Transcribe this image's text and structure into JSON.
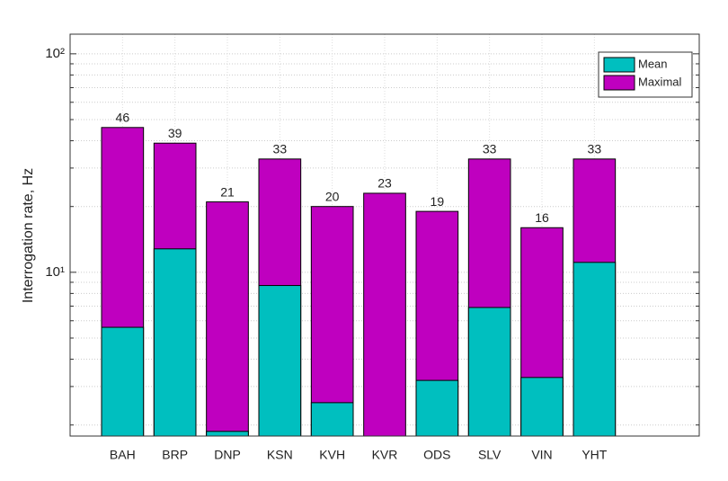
{
  "chart_data": {
    "type": "bar",
    "ylabel": "Interrogation rate, Hz",
    "categories": [
      "BAH",
      "BRP",
      "DNP",
      "KSN",
      "KVH",
      "KVR",
      "ODS",
      "SLV",
      "VIN",
      "YHT"
    ],
    "series": [
      {
        "name": "Maximal",
        "color": "#bf00bf",
        "values": [
          46,
          39,
          21,
          33,
          20,
          23,
          19,
          33,
          16,
          33
        ]
      },
      {
        "name": "Mean",
        "color": "#00bfbf",
        "values": [
          5.6,
          12.8,
          1.87,
          8.7,
          2.53,
          null,
          3.2,
          6.9,
          3.3,
          11.1
        ]
      }
    ],
    "legend_order": [
      "Mean",
      "Maximal"
    ],
    "legend": "upper right",
    "log_y": true,
    "ylim": [
      1.78,
      123
    ],
    "yticks": [
      {
        "value": 10,
        "label": "10¹"
      },
      {
        "value": 100,
        "label": "10²"
      }
    ],
    "minor_yticks": [
      2,
      3,
      4,
      5,
      6,
      7,
      8,
      9,
      20,
      30,
      40,
      50,
      60,
      70,
      80,
      90
    ],
    "grid": true
  }
}
